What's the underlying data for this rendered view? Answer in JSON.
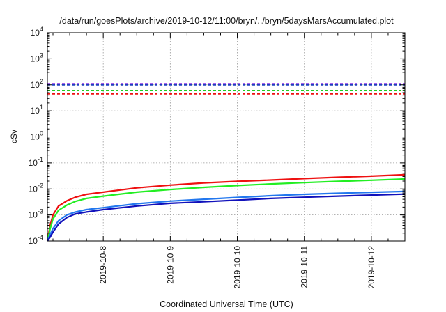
{
  "chart_data": {
    "type": "line",
    "title": "/data/run/goesPlots/archive/2019-10-12/11:00/bryn/../bryn/5daysMarsAccumulated.plot",
    "xlabel": "Coordinated Universal Time (UTC)",
    "ylabel": "cSv",
    "xscale": "linear",
    "yscale": "log",
    "xlim": [
      "2019-10-07T04:00",
      "2019-10-12T12:00"
    ],
    "ylim": [
      0.0001,
      10000
    ],
    "x_ticks": [
      "2019-10-8",
      "2019-10-9",
      "2019-10-10",
      "2019-10-11",
      "2019-10-12"
    ],
    "y_ticks": [
      {
        "base": "10",
        "exp": "4"
      },
      {
        "base": "10",
        "exp": "3"
      },
      {
        "base": "10",
        "exp": "2"
      },
      {
        "base": "10",
        "exp": "1"
      },
      {
        "base": "10",
        "exp": "0"
      },
      {
        "base": "10",
        "exp": "-1"
      },
      {
        "base": "10",
        "exp": "-2"
      },
      {
        "base": "10",
        "exp": "-3"
      },
      {
        "base": "10",
        "exp": "-4"
      }
    ],
    "grid": true,
    "thresholds": [
      {
        "value": 110,
        "color": "#8a2be2",
        "style": "dashed"
      },
      {
        "value": 100,
        "color": "#1f3fbf",
        "style": "dashed"
      },
      {
        "value": 60,
        "color": "#22cc22",
        "style": "dashed"
      },
      {
        "value": 45,
        "color": "#ee1111",
        "style": "dashed"
      }
    ],
    "series": [
      {
        "color": "#ee1111",
        "x": [
          "2019-10-07T04:00",
          "2019-10-07T05:00",
          "2019-10-07T06:00",
          "2019-10-07T08:00",
          "2019-10-07T11:00",
          "2019-10-07T14:00",
          "2019-10-07T18:00",
          "2019-10-08T00:00",
          "2019-10-08T12:00",
          "2019-10-09T00:00",
          "2019-10-09T12:00",
          "2019-10-10T00:00",
          "2019-10-10T12:00",
          "2019-10-11T00:00",
          "2019-10-11T12:00",
          "2019-10-12T00:00",
          "2019-10-12T12:00"
        ],
        "y": [
          0.0001,
          0.0004,
          0.001,
          0.0022,
          0.0035,
          0.0048,
          0.0062,
          0.0075,
          0.011,
          0.014,
          0.017,
          0.0195,
          0.022,
          0.025,
          0.028,
          0.031,
          0.035
        ]
      },
      {
        "color": "#22ee22",
        "x": [
          "2019-10-07T04:00",
          "2019-10-07T05:00",
          "2019-10-07T06:00",
          "2019-10-07T08:00",
          "2019-10-07T11:00",
          "2019-10-07T14:00",
          "2019-10-07T18:00",
          "2019-10-08T00:00",
          "2019-10-08T12:00",
          "2019-10-09T00:00",
          "2019-10-09T12:00",
          "2019-10-10T00:00",
          "2019-10-10T12:00",
          "2019-10-11T00:00",
          "2019-10-11T12:00",
          "2019-10-12T00:00",
          "2019-10-12T12:00"
        ],
        "y": [
          0.0001,
          0.0003,
          0.0007,
          0.0015,
          0.0024,
          0.0033,
          0.0043,
          0.0053,
          0.0075,
          0.0095,
          0.0115,
          0.0135,
          0.0155,
          0.0175,
          0.0195,
          0.0215,
          0.024
        ]
      },
      {
        "color": "#2277ee",
        "x": [
          "2019-10-07T04:00",
          "2019-10-07T05:00",
          "2019-10-07T06:00",
          "2019-10-07T08:00",
          "2019-10-07T11:00",
          "2019-10-07T14:00",
          "2019-10-07T18:00",
          "2019-10-08T00:00",
          "2019-10-08T12:00",
          "2019-10-09T00:00",
          "2019-10-09T12:00",
          "2019-10-10T00:00",
          "2019-10-10T12:00",
          "2019-10-11T00:00",
          "2019-10-11T12:00",
          "2019-10-12T00:00",
          "2019-10-12T12:00"
        ],
        "y": [
          0.0001,
          0.00018,
          0.0003,
          0.0006,
          0.001,
          0.0013,
          0.0016,
          0.0019,
          0.0027,
          0.0034,
          0.004,
          0.0047,
          0.0055,
          0.0062,
          0.0068,
          0.0074,
          0.008
        ]
      },
      {
        "color": "#1111bb",
        "x": [
          "2019-10-07T04:00",
          "2019-10-07T05:00",
          "2019-10-07T06:00",
          "2019-10-07T08:00",
          "2019-10-07T11:00",
          "2019-10-07T14:00",
          "2019-10-07T18:00",
          "2019-10-08T00:00",
          "2019-10-08T12:00",
          "2019-10-09T00:00",
          "2019-10-09T12:00",
          "2019-10-10T00:00",
          "2019-10-10T12:00",
          "2019-10-11T00:00",
          "2019-10-11T12:00",
          "2019-10-12T00:00",
          "2019-10-12T12:00"
        ],
        "y": [
          0.0001,
          0.00014,
          0.00022,
          0.00045,
          0.0008,
          0.0011,
          0.0013,
          0.0016,
          0.0022,
          0.0028,
          0.0032,
          0.0037,
          0.0043,
          0.0048,
          0.0053,
          0.0058,
          0.0063
        ]
      }
    ]
  }
}
